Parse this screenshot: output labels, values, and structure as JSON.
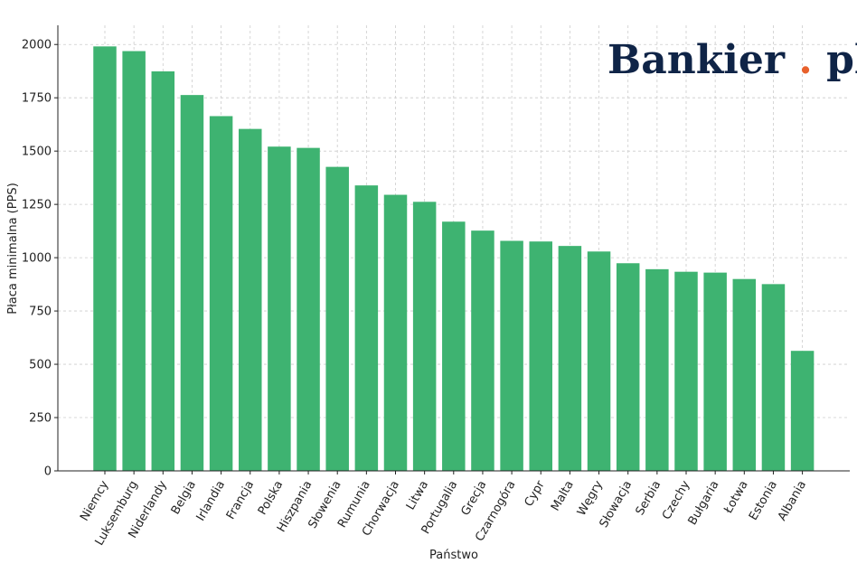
{
  "branding": {
    "logo_name": "Bankier",
    "logo_suffix": "pl",
    "logo_color": "#0f2447",
    "logo_dot_color": "#e8612c"
  },
  "colors": {
    "bar": "#3eb371",
    "grid": "#cccccc",
    "axis": "#222222"
  },
  "chart_data": {
    "type": "bar",
    "xlabel": "Państwo",
    "ylabel": "Płaca minimalna (PPS)",
    "ylim": [
      0,
      2090
    ],
    "yticks": [
      0,
      250,
      500,
      750,
      1000,
      1250,
      1500,
      1750,
      2000
    ],
    "grid": true,
    "categories": [
      "Niemcy",
      "Luksemburg",
      "Niderlandy",
      "Belgia",
      "Irlandia",
      "Francja",
      "Polska",
      "Hiszpania",
      "Słowenia",
      "Rumunia",
      "Chorwacja",
      "Litwa",
      "Portugalia",
      "Grecja",
      "Czarnogóra",
      "Cypr",
      "Malta",
      "Węgry",
      "Słowacja",
      "Serbia",
      "Czechy",
      "Bułgaria",
      "Łotwa",
      "Estonia",
      "Albania"
    ],
    "values": [
      1991,
      1969,
      1874,
      1763,
      1664,
      1604,
      1521,
      1515,
      1426,
      1339,
      1295,
      1262,
      1169,
      1127,
      1079,
      1076,
      1055,
      1029,
      974,
      946,
      934,
      930,
      900,
      876,
      563
    ]
  }
}
